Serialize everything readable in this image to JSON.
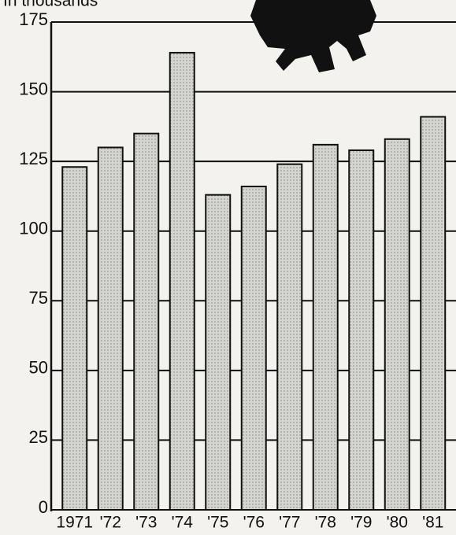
{
  "chart_data": {
    "type": "bar",
    "subtitle": "In thousands",
    "categories": [
      "1971",
      "'72",
      "'73",
      "'74",
      "'75",
      "'76",
      "'77",
      "'78",
      "'79",
      "'80",
      "'81"
    ],
    "values": [
      123,
      130,
      135,
      164,
      113,
      116,
      124,
      131,
      129,
      133,
      141
    ],
    "color": "#cfcfcc",
    "ylim": [
      0,
      175
    ],
    "yticks": [
      0,
      25,
      50,
      75,
      100,
      125,
      150,
      175
    ],
    "grid": true
  }
}
